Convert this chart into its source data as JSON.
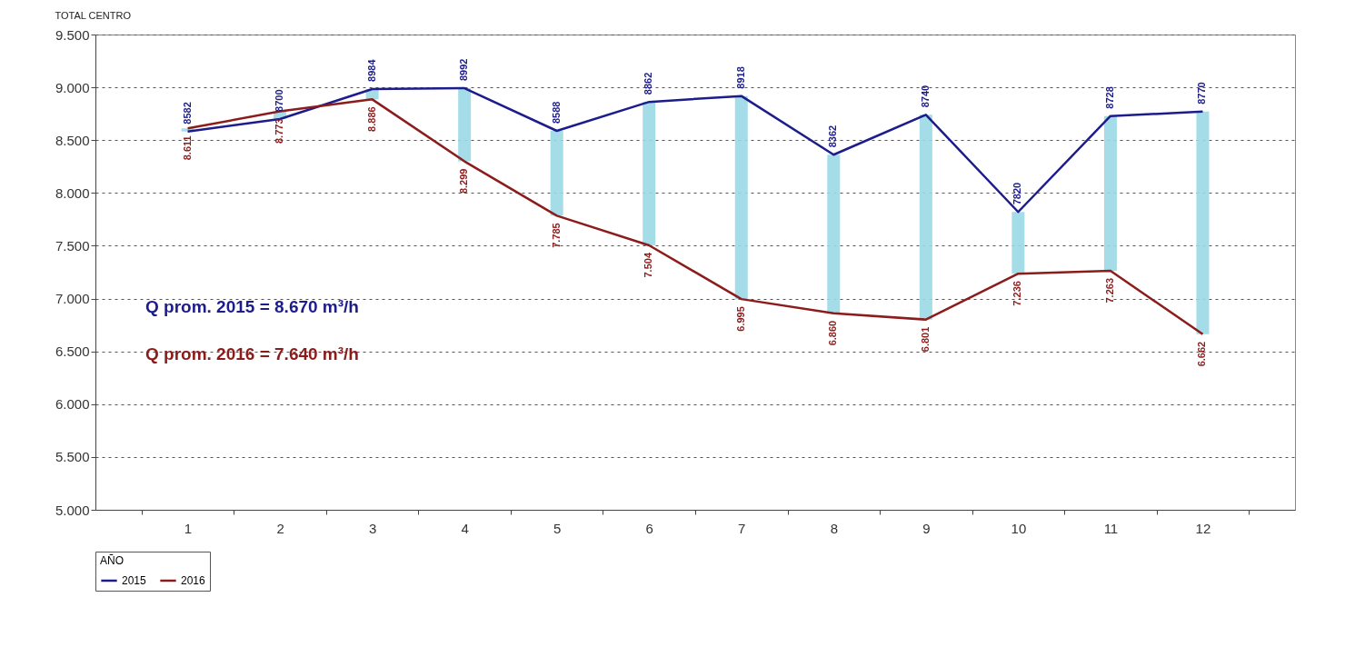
{
  "chart_data": {
    "type": "line",
    "title": "TOTAL CENTRO",
    "legend_title": "AÑO",
    "categories": [
      "1",
      "2",
      "3",
      "4",
      "5",
      "6",
      "7",
      "8",
      "9",
      "10",
      "11",
      "12"
    ],
    "series": [
      {
        "name": "2015",
        "color": "#1c1c8c",
        "values": [
          8582,
          8700,
          8984,
          8992,
          8588,
          8862,
          8918,
          8362,
          8740,
          7820,
          8728,
          8770
        ],
        "value_labels": [
          "8582",
          "8700",
          "8984",
          "8992",
          "8588",
          "8862",
          "8918",
          "8362",
          "8740",
          "7820",
          "8728",
          "8770"
        ]
      },
      {
        "name": "2016",
        "color": "#8c1c1c",
        "values": [
          8611,
          8773,
          8886,
          8299,
          7785,
          7504,
          6995,
          6860,
          6801,
          7236,
          7263,
          6662
        ],
        "value_labels": [
          "8.611",
          "8.773",
          "8.886",
          "8.299",
          "7.785",
          "7.504",
          "6.995",
          "6.860",
          "6.801",
          "7.236",
          "7.263",
          "6.662"
        ]
      }
    ],
    "ylim": [
      5000,
      9500
    ],
    "yticks": [
      {
        "value": 5000,
        "label": "5.000"
      },
      {
        "value": 5500,
        "label": "5.500"
      },
      {
        "value": 6000,
        "label": "6.000"
      },
      {
        "value": 6500,
        "label": "6.500"
      },
      {
        "value": 7000,
        "label": "7.000"
      },
      {
        "value": 7500,
        "label": "7.500"
      },
      {
        "value": 8000,
        "label": "8.000"
      },
      {
        "value": 8500,
        "label": "8.500"
      },
      {
        "value": 9000,
        "label": "9.000"
      },
      {
        "value": 9500,
        "label": "9.500"
      }
    ],
    "grid": "y",
    "legend": "bottom",
    "marker": "none",
    "line_style": "solid",
    "annotations": [
      "Q prom. 2015 = 8.670 m³/h",
      "Q prom. 2016 = 7.640 m³/h"
    ]
  }
}
